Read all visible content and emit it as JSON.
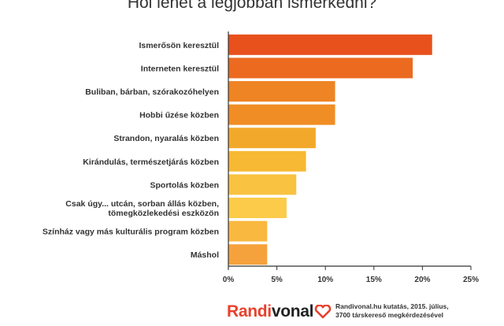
{
  "chart_data": {
    "type": "bar",
    "orientation": "horizontal",
    "title": "Hol lehet a legjobban ismerkedni?",
    "categories": [
      "Ismerősön keresztül",
      "Interneten keresztül",
      "Buliban, bárban, szórakozóhelyen",
      "Hobbi űzése közben",
      "Strandon, nyaralás közben",
      "Kirándulás, természetjárás közben",
      "Sportolás közben",
      "Csak úgy... utcán, sorban állás közben, tömegközlekedési eszközön",
      "Színház vagy más kulturális program közben",
      "Máshol"
    ],
    "values": [
      21,
      19,
      11,
      11,
      9,
      8,
      7,
      6,
      4,
      4
    ],
    "bar_colors": [
      "#e8501c",
      "#eb6a1f",
      "#ee8423",
      "#f08d25",
      "#f2a92b",
      "#f7b833",
      "#f9c241",
      "#fbcb49",
      "#f9b840",
      "#f6a23c"
    ],
    "xlim": [
      0,
      25
    ],
    "xticks": [
      "0%",
      "5%",
      "10%",
      "15%",
      "20%",
      "25%"
    ],
    "grid": false
  },
  "footer": {
    "brand_part1": "Randi",
    "brand_part2": "vonal",
    "heart_icon": "heart-icon",
    "source_line1": "Randivonal.hu kutatás, 2015. július,",
    "source_line2": "3700 társkereső megkérdezésével"
  }
}
